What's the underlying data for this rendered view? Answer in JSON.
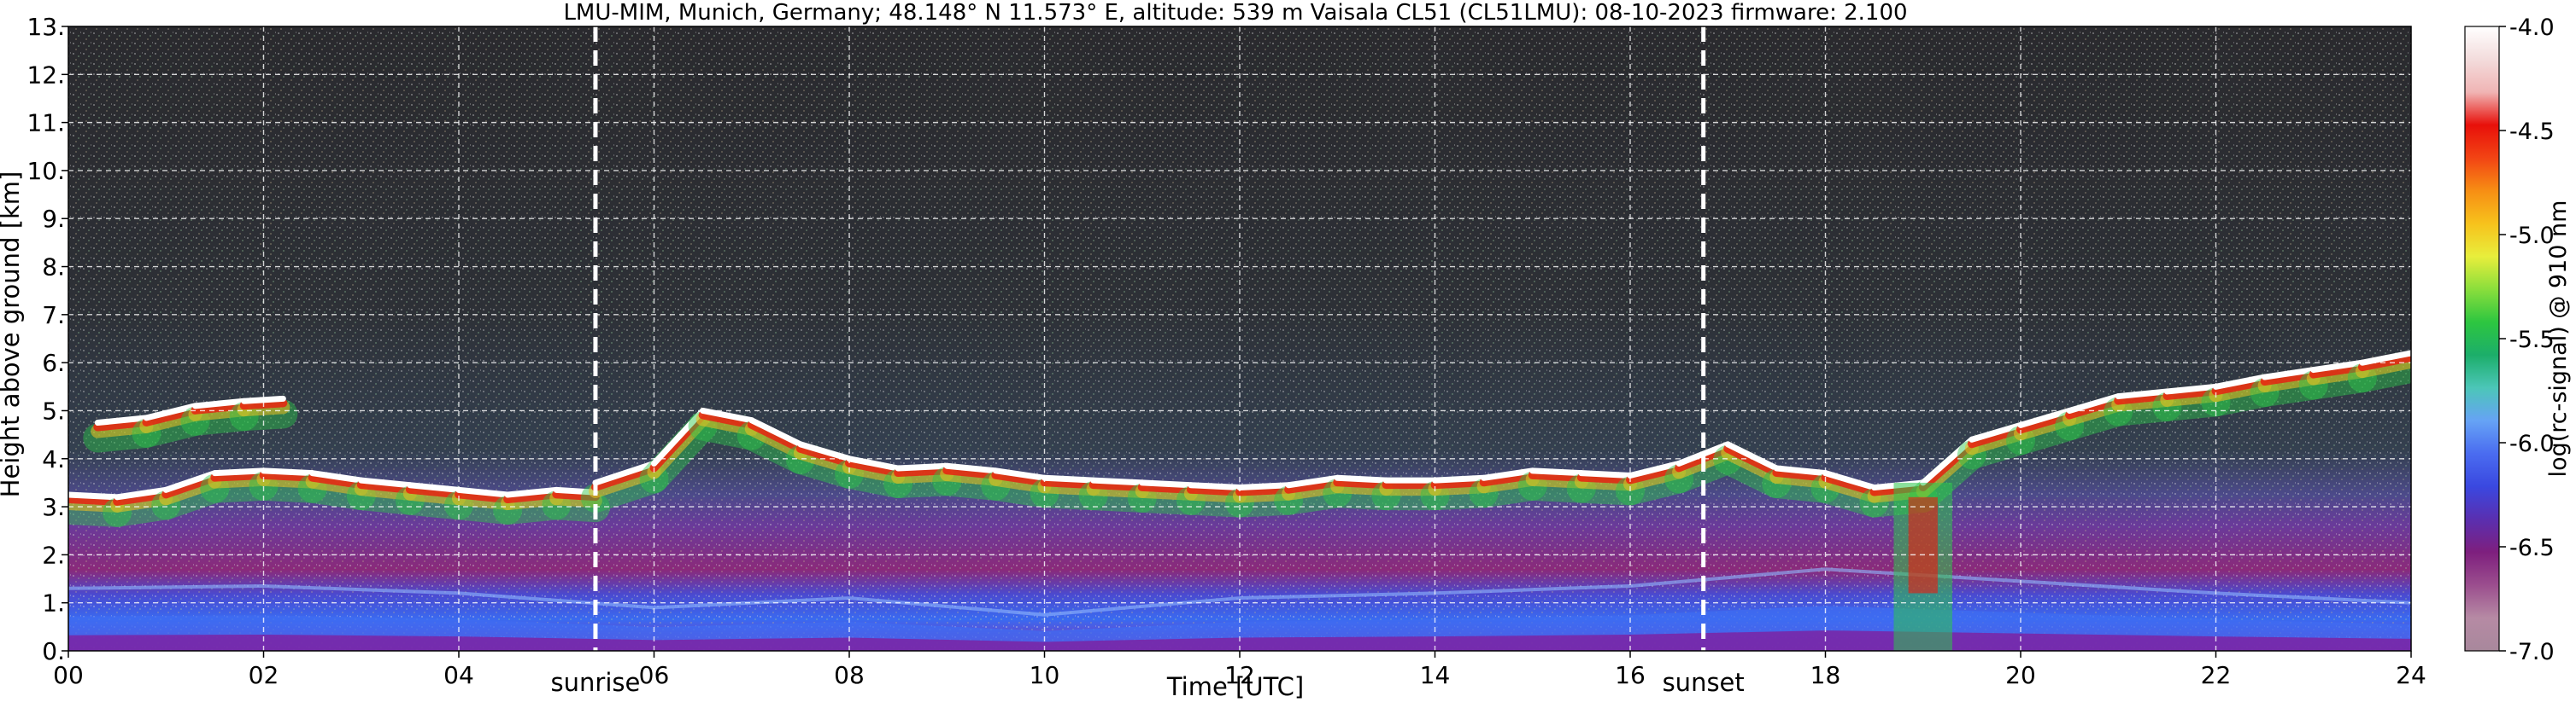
{
  "chart_data": {
    "type": "heatmap",
    "title": "LMU-MIM, Munich, Germany; 48.148° N 11.573° E, altitude: 539 m    Vaisala CL51 (CL51LMU): 08-10-2023    firmware: 2.100",
    "xlabel": "Time [UTC]",
    "ylabel": "Height above ground [km]",
    "xlim": [
      0,
      24
    ],
    "ylim": [
      0,
      13
    ],
    "xticks": [
      "00",
      "02",
      "04",
      "06",
      "08",
      "10",
      "12",
      "14",
      "16",
      "18",
      "20",
      "22",
      "24"
    ],
    "xtick_values": [
      0,
      2,
      4,
      6,
      8,
      10,
      12,
      14,
      16,
      18,
      20,
      22,
      24
    ],
    "yticks": [
      "0.",
      "1.",
      "2.",
      "3.",
      "4.",
      "5.",
      "6.",
      "7.",
      "8.",
      "9.",
      "10.",
      "11.",
      "12.",
      "13."
    ],
    "ytick_values": [
      0,
      1,
      2,
      3,
      4,
      5,
      6,
      7,
      8,
      9,
      10,
      11,
      12,
      13
    ],
    "grid": true,
    "events": [
      {
        "label": "sunrise",
        "time": 5.4
      },
      {
        "label": "sunset",
        "time": 16.75
      }
    ],
    "colorbar": {
      "label": "log(rc-signal) @ 910 nm",
      "range": [
        -7.0,
        -4.0
      ],
      "ticks": [
        "-4.0",
        "-4.5",
        "-5.0",
        "-5.5",
        "-6.0",
        "-6.5",
        "-7.0"
      ],
      "tick_values": [
        -4.0,
        -4.5,
        -5.0,
        -5.5,
        -6.0,
        -6.5,
        -7.0
      ],
      "colors": [
        "#a8889c",
        "#b68aa4",
        "#9b4e8e",
        "#7e1f7e",
        "#5a2fb0",
        "#3a48e0",
        "#4a6cf0",
        "#66a3f5",
        "#4cc6b8",
        "#1cae6a",
        "#2dc640",
        "#8ade3c",
        "#e8ee3c",
        "#f7c21c",
        "#f78e14",
        "#f24414",
        "#e8100a",
        "#f0b4b4",
        "#f3dcdc",
        "#ffffff"
      ]
    },
    "cloud_layers": [
      {
        "t": [
          0.0,
          0.5,
          1.0,
          1.5,
          2.0,
          2.5,
          3.0,
          3.5,
          4.0,
          4.5,
          5.0,
          5.4
        ],
        "h": [
          3.25,
          3.2,
          3.35,
          3.7,
          3.75,
          3.7,
          3.55,
          3.45,
          3.35,
          3.25,
          3.35,
          3.3
        ]
      },
      {
        "t": [
          5.4,
          6.0,
          6.5,
          7.0,
          7.5,
          8.0,
          8.5,
          9.0,
          9.5,
          10.0,
          10.5,
          11.0,
          11.5,
          12.0,
          12.5,
          13.0,
          13.5,
          14.0,
          14.5,
          15.0,
          15.5,
          16.0,
          16.5,
          17.0,
          17.5,
          18.0,
          18.5,
          19.0,
          19.5,
          20.0,
          20.5,
          21.0,
          21.5,
          22.0,
          22.5,
          23.0,
          23.5,
          24.0
        ],
        "h": [
          3.5,
          3.9,
          5.0,
          4.8,
          4.3,
          4.0,
          3.8,
          3.85,
          3.75,
          3.6,
          3.55,
          3.5,
          3.45,
          3.4,
          3.45,
          3.6,
          3.55,
          3.55,
          3.6,
          3.75,
          3.7,
          3.65,
          3.9,
          4.3,
          3.8,
          3.7,
          3.4,
          3.5,
          4.4,
          4.7,
          5.0,
          5.3,
          5.4,
          5.5,
          5.7,
          5.85,
          6.0,
          6.2
        ]
      },
      {
        "t": [
          0.3,
          0.8,
          1.3,
          1.8,
          2.2
        ],
        "h": [
          4.75,
          4.85,
          5.1,
          5.2,
          5.25
        ]
      }
    ],
    "boundary_layer": {
      "t": [
        0,
        2,
        4,
        6,
        8,
        10,
        12,
        14,
        16,
        18,
        20,
        22,
        24
      ],
      "h": [
        1.3,
        1.35,
        1.2,
        0.9,
        1.1,
        0.75,
        1.1,
        1.2,
        1.35,
        1.7,
        1.45,
        1.2,
        1.0
      ]
    },
    "precip_shaft": {
      "t_start": 18.7,
      "t_end": 19.3,
      "top_km": 3.5
    }
  }
}
